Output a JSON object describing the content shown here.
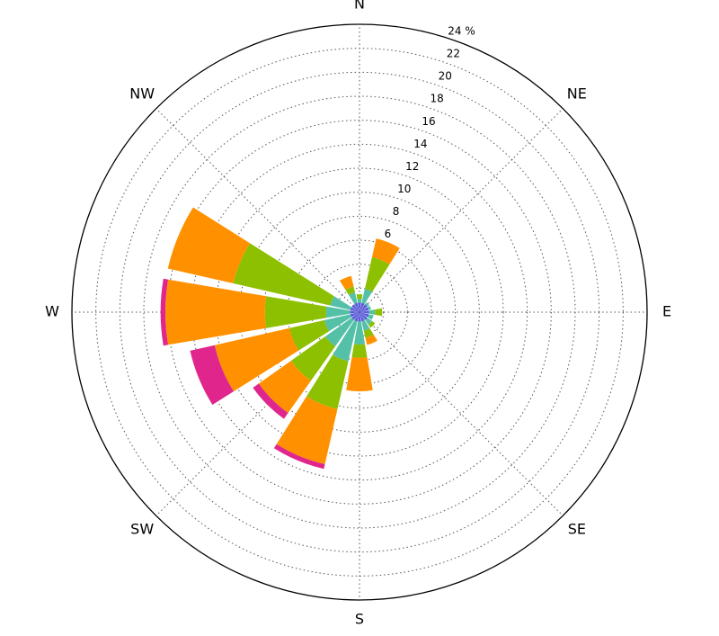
{
  "chart_data": {
    "type": "windrose",
    "categories": [
      "N",
      null,
      "NE",
      null,
      "E",
      null,
      "SE",
      null,
      "S",
      null,
      "SW",
      null,
      "W",
      null,
      "NW",
      null
    ],
    "series": [
      {
        "color": "#5a5ad8",
        "values": [
          0.8,
          0.8,
          0.8,
          0.8,
          0.8,
          0.8,
          0.8,
          0.8,
          0.8,
          0.8,
          0.8,
          0.8,
          0.8,
          0.8,
          0.8,
          0.8
        ]
      },
      {
        "color": "#55c0a8",
        "values": [
          0.3,
          1.2,
          0.2,
          0.2,
          0.5,
          0.4,
          0.5,
          0.8,
          1.9,
          3.4,
          2.7,
          2.2,
          2.0,
          1.7,
          0,
          0.9
        ]
      },
      {
        "color": "#8cc000",
        "values": [
          0.4,
          2.7,
          0,
          0,
          0.6,
          0,
          0.3,
          0.6,
          1.1,
          4.1,
          3.5,
          3.0,
          5.1,
          8.3,
          0,
          0.5
        ]
      },
      {
        "color": "#ff9100",
        "values": [
          0,
          1.6,
          0,
          0,
          0,
          0,
          0,
          0.6,
          2.8,
          4.7,
          3.3,
          6.4,
          8.3,
          5.6,
          0,
          0.9
        ]
      },
      {
        "color": "#e0268c",
        "values": [
          0,
          0,
          0,
          0,
          0,
          0,
          0,
          0,
          0,
          0.4,
          0.6,
          2.1,
          0.4,
          0,
          0,
          0
        ]
      }
    ],
    "ylim": [
      0,
      24
    ],
    "yticks": [
      2,
      4,
      6,
      8,
      10,
      12,
      14,
      16,
      18,
      20,
      22,
      {
        "value": 24,
        "label": "24 %"
      }
    ],
    "grid": true
  }
}
